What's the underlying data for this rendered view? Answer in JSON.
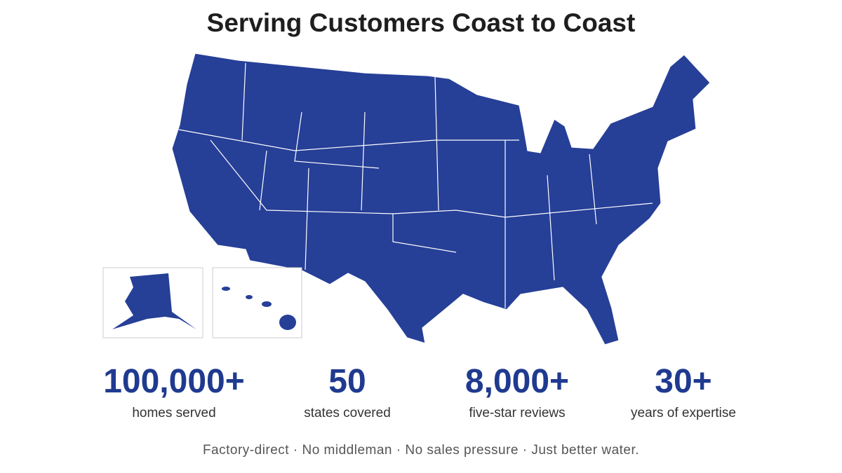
{
  "title": "Serving Customers Coast to Coast",
  "stats": [
    {
      "value": "100,000+",
      "label": "homes served"
    },
    {
      "value": "50",
      "label": "states covered"
    },
    {
      "value": "8,000+",
      "label": "five-star reviews"
    },
    {
      "value": "30+",
      "label": "years of expertise"
    }
  ],
  "tagline": "Factory-direct · No middleman · No sales pressure · Just better water."
}
